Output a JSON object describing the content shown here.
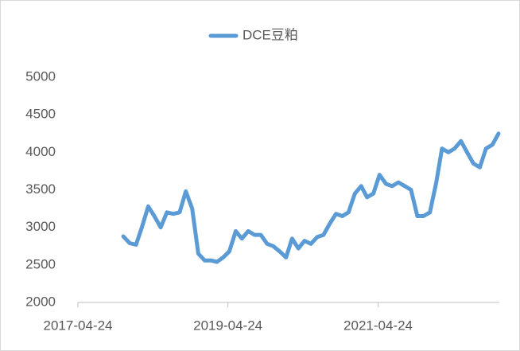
{
  "chart_data": {
    "type": "line",
    "x": [
      "2017-12-01",
      "2018-01-01",
      "2018-02-01",
      "2018-03-01",
      "2018-04-01",
      "2018-05-01",
      "2018-06-01",
      "2018-07-01",
      "2018-08-01",
      "2018-09-01",
      "2018-10-01",
      "2018-11-01",
      "2018-12-01",
      "2019-01-01",
      "2019-02-01",
      "2019-03-01",
      "2019-04-01",
      "2019-05-01",
      "2019-06-01",
      "2019-07-01",
      "2019-08-01",
      "2019-09-01",
      "2019-10-01",
      "2019-11-01",
      "2019-12-01",
      "2020-01-01",
      "2020-02-01",
      "2020-03-01",
      "2020-04-01",
      "2020-05-01",
      "2020-06-01",
      "2020-07-01",
      "2020-08-01",
      "2020-09-01",
      "2020-10-01",
      "2020-11-01",
      "2020-12-01",
      "2021-01-01",
      "2021-02-01",
      "2021-03-01",
      "2021-04-01",
      "2021-05-01",
      "2021-06-01",
      "2021-07-01",
      "2021-08-01",
      "2021-09-01",
      "2021-10-01",
      "2021-11-01",
      "2021-12-01",
      "2022-01-01",
      "2022-02-01",
      "2022-03-01",
      "2022-04-01",
      "2022-05-01",
      "2022-06-01",
      "2022-07-01",
      "2022-08-01",
      "2022-09-01",
      "2022-10-01",
      "2022-11-01",
      "2022-12-01"
    ],
    "series": [
      {
        "name": "DCE豆粕",
        "color": "#5b9bd5",
        "values": [
          2880,
          2790,
          2770,
          3000,
          3280,
          3150,
          3000,
          3200,
          3180,
          3200,
          3480,
          3250,
          2650,
          2560,
          2560,
          2540,
          2600,
          2680,
          2950,
          2850,
          2950,
          2900,
          2900,
          2780,
          2750,
          2680,
          2600,
          2850,
          2720,
          2820,
          2780,
          2870,
          2900,
          3050,
          3180,
          3150,
          3200,
          3450,
          3550,
          3400,
          3450,
          3700,
          3580,
          3550,
          3600,
          3550,
          3500,
          3150,
          3150,
          3200,
          3600,
          4050,
          4000,
          4050,
          4150,
          4000,
          3850,
          3800,
          4050,
          4100,
          4250
        ]
      }
    ],
    "xlim": [
      "2017-04-24",
      "2022-12-05"
    ],
    "xticks": [
      "2017-04-24",
      "2019-04-24",
      "2021-04-24"
    ],
    "ylim": [
      2000,
      5000
    ],
    "yticks": [
      2000,
      2500,
      3000,
      3500,
      4000,
      4500,
      5000
    ],
    "grid": false,
    "legend": "top"
  }
}
